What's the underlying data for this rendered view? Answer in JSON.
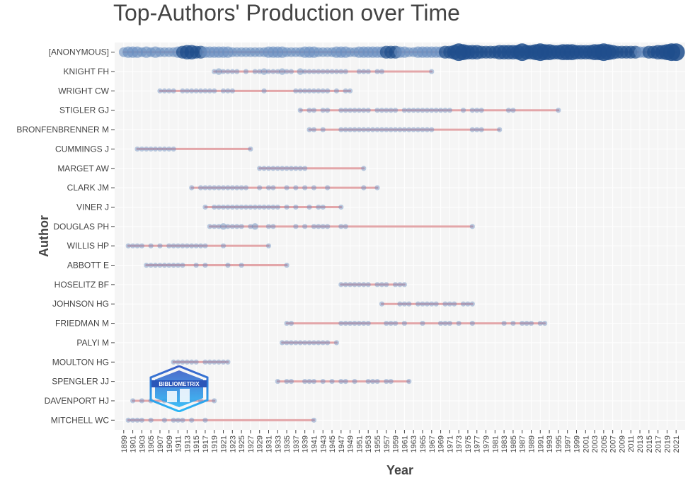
{
  "chart_data": {
    "type": "scatter",
    "title": "Top-Authors' Production over Time",
    "xlabel": "Year",
    "ylabel": "Author",
    "xlim": [
      1897,
      2023
    ],
    "x_ticks": [
      1899,
      1901,
      1903,
      1905,
      1907,
      1909,
      1911,
      1913,
      1915,
      1917,
      1919,
      1921,
      1923,
      1925,
      1927,
      1929,
      1931,
      1933,
      1935,
      1937,
      1939,
      1941,
      1943,
      1945,
      1947,
      1949,
      1951,
      1953,
      1955,
      1957,
      1959,
      1961,
      1963,
      1965,
      1967,
      1969,
      1971,
      1973,
      1975,
      1977,
      1979,
      1981,
      1983,
      1985,
      1987,
      1989,
      1991,
      1993,
      1995,
      1997,
      1999,
      2001,
      2003,
      2005,
      2007,
      2009,
      2011,
      2013,
      2015,
      2017,
      2019,
      2021
    ],
    "grid": true,
    "colors": {
      "points": "#6a8fc0",
      "points_dark": "#1f4e8c",
      "lines": "#e3a6a9",
      "plot_bg": "#f5f5f5",
      "grid": "#ffffff"
    },
    "watermark": "BIBLIOMETRIX",
    "authors": [
      {
        "name": "[ANONYMOUS]",
        "years": [
          1899,
          1900,
          1901,
          1902,
          1903,
          1904,
          1905,
          1906,
          1907,
          1908,
          1909,
          1910,
          1911,
          1912,
          1913,
          1914,
          1915,
          1916,
          1917,
          1918,
          1919,
          1920,
          1921,
          1922,
          1923,
          1924,
          1925,
          1926,
          1927,
          1928,
          1929,
          1930,
          1931,
          1932,
          1933,
          1934,
          1935,
          1936,
          1937,
          1938,
          1939,
          1940,
          1941,
          1942,
          1943,
          1944,
          1945,
          1946,
          1947,
          1948,
          1949,
          1950,
          1951,
          1952,
          1953,
          1954,
          1955,
          1956,
          1957,
          1958,
          1959,
          1960,
          1961,
          1962,
          1963,
          1964,
          1965,
          1966,
          1967,
          1968,
          1969,
          1970,
          1971,
          1972,
          1973,
          1974,
          1975,
          1976,
          1977,
          1978,
          1979,
          1980,
          1981,
          1982,
          1983,
          1984,
          1985,
          1986,
          1987,
          1988,
          1989,
          1990,
          1991,
          1992,
          1993,
          1994,
          1995,
          1996,
          1997,
          1998,
          1999,
          2000,
          2001,
          2002,
          2003,
          2004,
          2005,
          2006,
          2007,
          2008,
          2009,
          2010,
          2011,
          2012,
          2013,
          2014,
          2015,
          2016,
          2017,
          2018,
          2019,
          2020,
          2021
        ],
        "counts": [
          4,
          5,
          5,
          5,
          4,
          5,
          4,
          5,
          4,
          4,
          4,
          4,
          5,
          6,
          7,
          7,
          6,
          6,
          5,
          5,
          5,
          5,
          5,
          5,
          4,
          4,
          4,
          4,
          4,
          4,
          4,
          4,
          5,
          5,
          5,
          5,
          4,
          4,
          4,
          4,
          5,
          5,
          5,
          4,
          4,
          4,
          4,
          5,
          5,
          5,
          4,
          4,
          5,
          5,
          5,
          5,
          5,
          5,
          6,
          6,
          6,
          5,
          5,
          4,
          4,
          5,
          5,
          5,
          5,
          5,
          5,
          6,
          6,
          7,
          9,
          8,
          7,
          7,
          7,
          6,
          6,
          6,
          6,
          7,
          7,
          7,
          7,
          7,
          9,
          7,
          7,
          8,
          9,
          8,
          8,
          7,
          7,
          8,
          8,
          8,
          7,
          7,
          7,
          7,
          8,
          8,
          9,
          8,
          7,
          6,
          6,
          6,
          6,
          6,
          5,
          5,
          6,
          6,
          7,
          7,
          8,
          9,
          9
        ]
      },
      {
        "name": "KNIGHT FH",
        "years": [
          1919,
          1920,
          1921,
          1922,
          1923,
          1924,
          1926,
          1928,
          1929,
          1930,
          1931,
          1932,
          1933,
          1934,
          1935,
          1936,
          1938,
          1939,
          1940,
          1941,
          1942,
          1943,
          1944,
          1945,
          1946,
          1947,
          1948,
          1951,
          1952,
          1953,
          1955,
          1956,
          1967
        ],
        "counts": [
          1,
          2,
          1,
          1,
          1,
          1,
          1,
          1,
          1,
          2,
          1,
          1,
          1,
          2,
          1,
          1,
          2,
          1,
          1,
          1,
          1,
          1,
          1,
          1,
          1,
          1,
          1,
          1,
          1,
          1,
          1,
          1,
          1
        ]
      },
      {
        "name": "WRIGHT CW",
        "years": [
          1907,
          1908,
          1909,
          1910,
          1912,
          1913,
          1914,
          1915,
          1916,
          1917,
          1918,
          1919,
          1921,
          1922,
          1923,
          1930,
          1937,
          1938,
          1939,
          1940,
          1941,
          1942,
          1943,
          1944,
          1946,
          1948,
          1949
        ],
        "counts": [
          1,
          1,
          1,
          1,
          1,
          1,
          1,
          1,
          1,
          1,
          1,
          1,
          1,
          1,
          1,
          1,
          1,
          1,
          1,
          1,
          1,
          1,
          1,
          1,
          1,
          1,
          1
        ]
      },
      {
        "name": "STIGLER GJ",
        "years": [
          1938,
          1940,
          1941,
          1943,
          1944,
          1947,
          1948,
          1949,
          1950,
          1951,
          1952,
          1953,
          1955,
          1956,
          1957,
          1958,
          1959,
          1961,
          1962,
          1963,
          1964,
          1965,
          1966,
          1967,
          1968,
          1969,
          1970,
          1971,
          1974,
          1976,
          1977,
          1978,
          1984,
          1985,
          1995
        ],
        "counts": [
          1,
          1,
          1,
          1,
          1,
          1,
          1,
          1,
          1,
          1,
          1,
          1,
          1,
          1,
          1,
          1,
          1,
          1,
          1,
          1,
          1,
          1,
          1,
          1,
          1,
          1,
          1,
          1,
          1,
          1,
          1,
          1,
          1,
          1,
          1
        ]
      },
      {
        "name": "BRONFENBRENNER M",
        "years": [
          1940,
          1941,
          1943,
          1947,
          1948,
          1949,
          1950,
          1951,
          1952,
          1953,
          1954,
          1955,
          1956,
          1957,
          1958,
          1959,
          1960,
          1961,
          1962,
          1963,
          1964,
          1965,
          1966,
          1967,
          1976,
          1977,
          1978,
          1982
        ],
        "counts": [
          1,
          1,
          1,
          1,
          1,
          1,
          1,
          1,
          1,
          1,
          1,
          1,
          1,
          1,
          1,
          1,
          1,
          1,
          1,
          1,
          1,
          1,
          1,
          1,
          1,
          1,
          1,
          1
        ]
      },
      {
        "name": "CUMMINGS J",
        "years": [
          1902,
          1903,
          1904,
          1905,
          1906,
          1907,
          1908,
          1909,
          1910,
          1927
        ],
        "counts": [
          1,
          1,
          1,
          1,
          1,
          1,
          1,
          1,
          1,
          1
        ]
      },
      {
        "name": "MARGET AW",
        "years": [
          1929,
          1930,
          1931,
          1932,
          1933,
          1934,
          1935,
          1936,
          1937,
          1938,
          1939,
          1952
        ],
        "counts": [
          1,
          1,
          1,
          1,
          1,
          1,
          1,
          1,
          1,
          1,
          1,
          1
        ]
      },
      {
        "name": "CLARK JM",
        "years": [
          1914,
          1916,
          1917,
          1918,
          1919,
          1920,
          1921,
          1922,
          1923,
          1924,
          1925,
          1926,
          1929,
          1931,
          1932,
          1935,
          1937,
          1939,
          1941,
          1944,
          1952,
          1955
        ],
        "counts": [
          1,
          1,
          1,
          1,
          1,
          1,
          1,
          1,
          1,
          1,
          1,
          1,
          1,
          1,
          1,
          1,
          1,
          1,
          1,
          1,
          1,
          1
        ]
      },
      {
        "name": "VINER J",
        "years": [
          1917,
          1919,
          1920,
          1921,
          1922,
          1923,
          1924,
          1925,
          1926,
          1927,
          1928,
          1929,
          1930,
          1931,
          1932,
          1933,
          1935,
          1937,
          1940,
          1942,
          1943,
          1947
        ],
        "counts": [
          1,
          1,
          1,
          1,
          1,
          1,
          1,
          1,
          1,
          1,
          1,
          1,
          1,
          1,
          1,
          1,
          1,
          1,
          1,
          1,
          1,
          1
        ]
      },
      {
        "name": "DOUGLAS PH",
        "years": [
          1918,
          1919,
          1920,
          1921,
          1922,
          1923,
          1924,
          1925,
          1927,
          1928,
          1931,
          1932,
          1937,
          1939,
          1941,
          1942,
          1943,
          1944,
          1947,
          1948,
          1976
        ],
        "counts": [
          1,
          1,
          1,
          2,
          1,
          1,
          1,
          1,
          1,
          2,
          1,
          1,
          1,
          1,
          1,
          1,
          1,
          1,
          1,
          1,
          1
        ]
      },
      {
        "name": "WILLIS HP",
        "years": [
          1900,
          1901,
          1902,
          1903,
          1905,
          1907,
          1909,
          1910,
          1911,
          1912,
          1913,
          1914,
          1915,
          1916,
          1917,
          1921,
          1931
        ],
        "counts": [
          1,
          1,
          1,
          1,
          1,
          1,
          1,
          1,
          1,
          1,
          1,
          1,
          1,
          1,
          1,
          1,
          1
        ]
      },
      {
        "name": "ABBOTT E",
        "years": [
          1904,
          1905,
          1906,
          1907,
          1908,
          1909,
          1910,
          1911,
          1912,
          1915,
          1917,
          1922,
          1925,
          1935
        ],
        "counts": [
          1,
          1,
          1,
          1,
          1,
          1,
          1,
          1,
          1,
          1,
          1,
          1,
          1,
          1
        ]
      },
      {
        "name": "HOSELITZ BF",
        "years": [
          1947,
          1948,
          1949,
          1950,
          1951,
          1952,
          1953,
          1955,
          1956,
          1957,
          1959,
          1960,
          1961
        ],
        "counts": [
          1,
          1,
          1,
          1,
          1,
          1,
          1,
          1,
          1,
          1,
          1,
          1,
          1
        ]
      },
      {
        "name": "JOHNSON HG",
        "years": [
          1956,
          1960,
          1961,
          1962,
          1964,
          1965,
          1966,
          1967,
          1968,
          1970,
          1971,
          1972,
          1974,
          1975,
          1976
        ],
        "counts": [
          1,
          1,
          1,
          1,
          1,
          1,
          1,
          1,
          1,
          1,
          1,
          1,
          1,
          1,
          1
        ]
      },
      {
        "name": "FRIEDMAN M",
        "years": [
          1935,
          1936,
          1947,
          1948,
          1949,
          1950,
          1951,
          1952,
          1953,
          1957,
          1958,
          1959,
          1961,
          1965,
          1969,
          1970,
          1971,
          1973,
          1976,
          1983,
          1985,
          1987,
          1988,
          1989,
          1991,
          1992
        ],
        "counts": [
          1,
          1,
          1,
          1,
          1,
          1,
          1,
          1,
          1,
          1,
          1,
          1,
          1,
          1,
          1,
          1,
          1,
          1,
          1,
          1,
          1,
          1,
          1,
          1,
          1,
          1
        ]
      },
      {
        "name": "PALYI M",
        "years": [
          1934,
          1935,
          1936,
          1937,
          1938,
          1939,
          1940,
          1941,
          1942,
          1943,
          1944,
          1946
        ],
        "counts": [
          1,
          1,
          1,
          1,
          1,
          1,
          1,
          1,
          1,
          1,
          1,
          1
        ]
      },
      {
        "name": "MOULTON HG",
        "years": [
          1910,
          1911,
          1912,
          1913,
          1914,
          1915,
          1917,
          1918,
          1919,
          1920,
          1921,
          1922
        ],
        "counts": [
          1,
          1,
          1,
          1,
          1,
          1,
          1,
          1,
          1,
          1,
          1,
          1
        ]
      },
      {
        "name": "SPENGLER JJ",
        "years": [
          1933,
          1935,
          1936,
          1939,
          1940,
          1941,
          1943,
          1945,
          1947,
          1948,
          1950,
          1953,
          1954,
          1955,
          1957,
          1958,
          1962
        ],
        "counts": [
          1,
          1,
          1,
          1,
          1,
          1,
          1,
          1,
          1,
          1,
          1,
          1,
          1,
          1,
          1,
          1,
          1
        ]
      },
      {
        "name": "DAVENPORT HJ",
        "years": [
          1901,
          1903,
          1905,
          1908,
          1910,
          1913,
          1916,
          1919
        ],
        "counts": [
          1,
          1,
          1,
          1,
          1,
          1,
          1,
          1
        ]
      },
      {
        "name": "MITCHELL WC",
        "years": [
          1900,
          1901,
          1902,
          1903,
          1905,
          1908,
          1910,
          1911,
          1912,
          1914,
          1917,
          1941
        ],
        "counts": [
          1,
          1,
          1,
          1,
          1,
          1,
          1,
          1,
          1,
          1,
          1,
          1
        ]
      }
    ]
  }
}
